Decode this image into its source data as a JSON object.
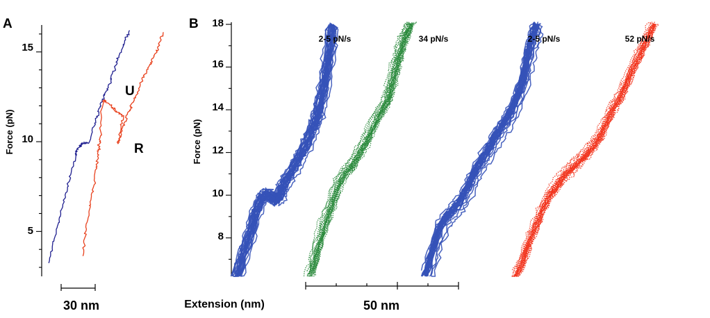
{
  "chart_data": [
    {
      "panel": "A",
      "type": "line",
      "ylabel": "Force (pN)",
      "ylim": [
        2.5,
        16.5
      ],
      "yticks": [
        5,
        10,
        15
      ],
      "scale_bar": "30 nm",
      "grid": false,
      "annotations": [
        "U",
        "R"
      ],
      "colors": {
        "stretch": "#1f1f8f",
        "unfold_refold": "#e8401c"
      },
      "series": [
        {
          "role": "stretch",
          "color": "#1f1f8f",
          "x": [
            0,
            6,
            12,
            18,
            24,
            27,
            30,
            36,
            42,
            48,
            54,
            60,
            66,
            72
          ],
          "y": [
            3.3,
            4.8,
            6.3,
            7.8,
            9.3,
            9.7,
            9.9,
            10.0,
            11.3,
            12.3,
            13.2,
            14.4,
            15.3,
            16.2
          ]
        },
        {
          "role": "unfold-refold",
          "color": "#e8401c",
          "x": [
            30,
            34,
            38,
            42,
            44,
            46,
            48,
            52,
            60,
            66,
            62,
            66,
            72,
            78,
            84,
            90,
            96,
            102
          ],
          "y": [
            3.6,
            5.4,
            6.8,
            8.4,
            9.5,
            10.1,
            12.3,
            12.2,
            11.7,
            11.4,
            9.9,
            10.8,
            11.8,
            12.6,
            13.6,
            14.3,
            15.1,
            16.1
          ]
        }
      ]
    },
    {
      "panel": "B",
      "type": "line",
      "xlabel": "Extension (nm)",
      "ylabel": "Force (pN)",
      "ylim": [
        6.2,
        18.1
      ],
      "yticks": [
        8,
        10,
        12,
        14,
        16,
        18
      ],
      "scale_bar": "50 nm",
      "grid": false,
      "colors": {
        "2-5": "#3552b8",
        "34": "#2a8a3c",
        "52": "#f2331c"
      },
      "series": [
        {
          "name": "2-5 pN/s",
          "color": "#3552b8",
          "style": "solid",
          "x": [
            0,
            10,
            20,
            28,
            36,
            42,
            50,
            55,
            60,
            65,
            70,
            80,
            90,
            100,
            110,
            115,
            120,
            125,
            130,
            135,
            138
          ],
          "y": [
            6.2,
            7.3,
            8.3,
            9.3,
            9.9,
            10.1,
            10.0,
            9.8,
            9.9,
            10.3,
            10.7,
            11.2,
            11.8,
            12.4,
            13.2,
            13.6,
            14.3,
            15.0,
            16.0,
            17.0,
            18.0
          ]
        },
        {
          "name": "34 pN/s",
          "color": "#2a8a3c",
          "style": "dotted",
          "x": [
            0,
            10,
            20,
            30,
            40,
            50,
            60,
            70,
            80,
            90,
            100,
            110,
            115,
            120,
            125,
            130,
            135,
            140,
            145
          ],
          "y": [
            6.2,
            7.3,
            8.5,
            9.4,
            10.4,
            11.0,
            11.3,
            11.9,
            12.4,
            13.1,
            13.8,
            14.3,
            14.8,
            15.5,
            16.1,
            16.7,
            17.2,
            17.6,
            18.0
          ]
        },
        {
          "name": "2-5 pN/s",
          "color": "#3552b8",
          "style": "solid",
          "x": [
            0,
            10,
            20,
            30,
            40,
            50,
            60,
            70,
            80,
            90,
            100,
            110,
            120,
            130,
            140,
            145,
            150,
            155,
            160
          ],
          "y": [
            6.2,
            7.3,
            8.4,
            9.0,
            9.3,
            9.7,
            10.3,
            11.0,
            11.6,
            12.1,
            12.7,
            13.2,
            13.7,
            14.4,
            15.3,
            16.1,
            16.9,
            17.5,
            18.0
          ]
        },
        {
          "name": "52 pN/s",
          "color": "#f2331c",
          "style": "dotted",
          "x": [
            0,
            10,
            20,
            30,
            40,
            50,
            60,
            70,
            80,
            90,
            100,
            110,
            120,
            130,
            140,
            150,
            160,
            170,
            180,
            190,
            200
          ],
          "y": [
            6.2,
            6.8,
            7.8,
            8.6,
            9.4,
            10.0,
            10.4,
            10.9,
            11.2,
            11.5,
            11.8,
            12.2,
            12.6,
            13.3,
            14.0,
            14.5,
            15.2,
            16.0,
            16.6,
            17.3,
            18.0
          ]
        }
      ]
    }
  ],
  "panels": {
    "a": {
      "label": "A",
      "ylabel": "Force (pN)",
      "ticks": [
        "5",
        "10",
        "15"
      ],
      "scale_label": "30 nm",
      "marks": {
        "unfold": "U",
        "refold": "R"
      }
    },
    "b": {
      "label": "B",
      "xlabel": "Extension (nm)",
      "ylabel": "Force (pN)",
      "ticks": [
        "8",
        "10",
        "12",
        "14",
        "16",
        "18"
      ],
      "scale_label": "50 nm",
      "rates": [
        "2-5 pN/s",
        "34 pN/s",
        "2-5 pN/s",
        "52 pN/s"
      ]
    }
  }
}
